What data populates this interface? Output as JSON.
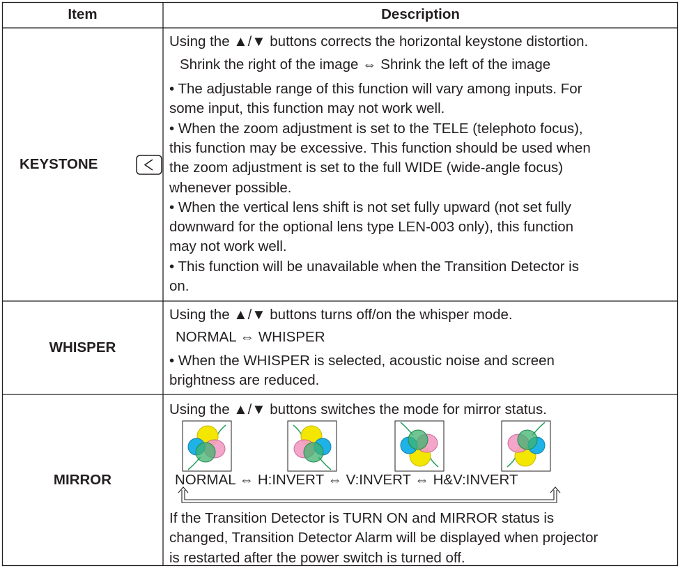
{
  "table": {
    "header": {
      "item": "Item",
      "description": "Description"
    },
    "rows": [
      {
        "item": "KEYSTONE",
        "description": {
          "intro": "Using the ▲/▼ buttons corrects the horizontal keystone distortion.",
          "options": "Shrink the right of the image ⇔ Shrink the left of the image",
          "notes": [
            [
              "• The adjustable range of this function will vary among inputs. For",
              "some input, this function may not work well."
            ],
            [
              "• When the zoom adjustment is set to the TELE (telephoto focus),",
              "this function may be excessive. This function should be used when",
              "the zoom adjustment is set to the full WIDE (wide-angle focus)",
              "whenever possible."
            ],
            [
              "• When the vertical lens shift is not set fully upward (not set fully",
              "downward for the optional lens type LEN-003 only), this function",
              "may not work well."
            ],
            [
              "• This function will be unavailable when the Transition Detector is",
              "on."
            ]
          ]
        }
      },
      {
        "item": "WHISPER",
        "description": {
          "intro": "Using the ▲/▼ buttons turns off/on the whisper mode.",
          "options": "NORMAL ⇔ WHISPER",
          "notes": [
            [
              "• When the WHISPER is selected, acoustic noise and screen",
              "brightness are reduced."
            ]
          ]
        }
      },
      {
        "item": "MIRROR",
        "description": {
          "intro": "Using the ▲/▼ buttons switches the mode for mirror status.",
          "options": "NORMAL ⇔ H:INVERT ⇔ V:INVERT ⇔ H&V:INVERT",
          "notes": [
            [
              "If the Transition Detector is TURN ON and MIRROR status is",
              "changed, Transition Detector Alarm will be displayed when projector",
              "is restarted after the power switch is turned off."
            ]
          ]
        }
      }
    ]
  }
}
